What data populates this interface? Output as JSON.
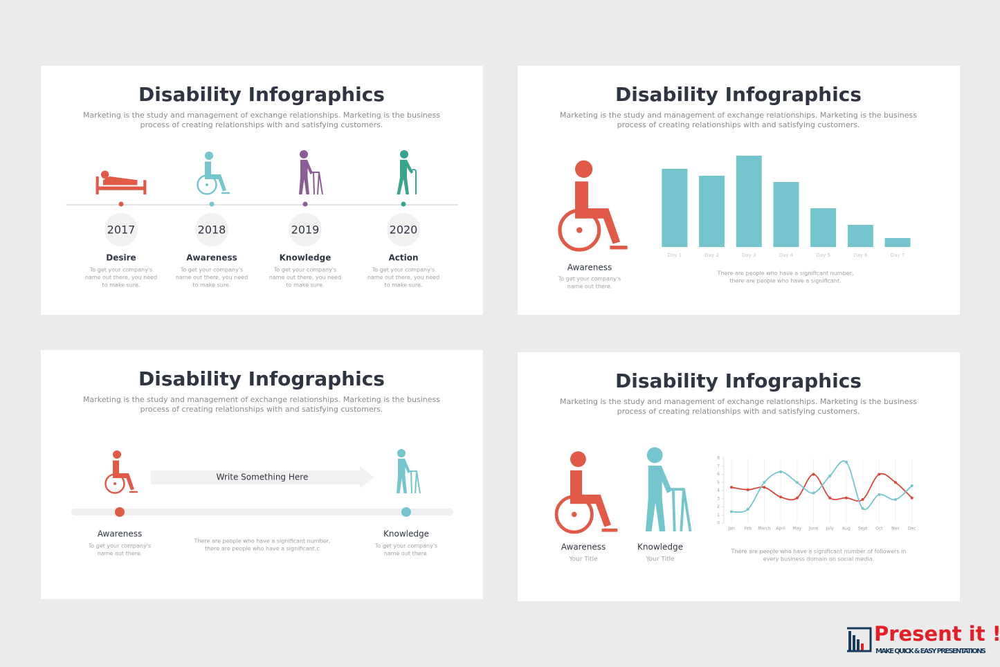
{
  "slides": [
    {
      "title": "Disability Infographics",
      "subtitle_lines": [
        "Marketing is the study and management of exchange relationships. Marketing is the business",
        "process of creating relationships with and satisfying customers."
      ],
      "timeline": [
        {
          "year": "2017",
          "label": "Desire",
          "text_lines": [
            "To get your company's",
            "name out there, you need",
            "to make sure."
          ]
        },
        {
          "year": "2018",
          "label": "Awareness",
          "text_lines": [
            "To get your company's",
            "name out there, you need",
            "to make sure."
          ]
        },
        {
          "year": "2019",
          "label": "Knowledge",
          "text_lines": [
            "To get your company's",
            "name out there, you need",
            "to make sure."
          ]
        },
        {
          "year": "2020",
          "label": "Action",
          "text_lines": [
            "To get your company's",
            "name out there, you need",
            "to make sure."
          ]
        }
      ]
    },
    {
      "title": "Disability Infographics",
      "subtitle_lines": [
        "Marketing is the study and management of exchange relationships. Marketing is the business",
        "process of creating relationships with and satisfying customers."
      ],
      "figure": {
        "label": "Awareness",
        "text_lines": [
          "To get your company's",
          "name out there."
        ]
      },
      "chart_data": {
        "type": "bar",
        "categories": [
          "Day 1",
          "Day 2",
          "Day 3",
          "Day 4",
          "Day 5",
          "Day 6",
          "Day 7"
        ],
        "values": [
          113,
          103,
          132,
          94,
          56,
          32,
          13
        ],
        "color": "#74c5ce",
        "ylim": [
          0,
          140
        ],
        "caption_lines": [
          "There are people who have a significant number,",
          "there are people who have a significant."
        ]
      }
    },
    {
      "title": "Disability Infographics",
      "subtitle_lines": [
        "Marketing is the study and management of exchange relationships. Marketing is the business",
        "process of creating relationships with and satisfying customers."
      ],
      "arrow_text": "Write Something Here",
      "start": {
        "label": "Awareness",
        "text_lines": [
          "To get your company's",
          "name out there."
        ]
      },
      "end": {
        "label": "Knowledge",
        "text_lines": [
          "To get your company's",
          "name out there."
        ]
      },
      "center_text_lines": [
        "There are people who have a significant number,",
        "there are people who have a significant.c"
      ]
    },
    {
      "title": "Disability Infographics",
      "subtitle_lines": [
        "Marketing is the study and management of exchange relationships. Marketing is the business",
        "process of creating relationships with and satisfying customers."
      ],
      "figures": [
        {
          "label": "Awareness",
          "sub": "Your Title"
        },
        {
          "label": "Knowledge",
          "sub": "Your Title"
        }
      ],
      "chart_data": {
        "type": "line",
        "categories": [
          "Jan",
          "Feb",
          "March",
          "April",
          "May",
          "June",
          "July",
          "Aug",
          "Sept",
          "Oct",
          "Nov",
          "Dec"
        ],
        "series": [
          {
            "color": "#d9473a",
            "values": [
              4.4,
              4.1,
              4.4,
              3.2,
              3.1,
              6.0,
              3.1,
              3.1,
              2.9,
              6.0,
              5.0,
              3.1
            ]
          },
          {
            "color": "#74c5ce",
            "values": [
              1.4,
              1.7,
              5.0,
              6.3,
              5.0,
              3.7,
              5.8,
              7.5,
              1.8,
              3.5,
              2.9,
              4.6
            ]
          }
        ],
        "ylim": [
          0,
          8
        ],
        "yticks": [
          0,
          1,
          2,
          3,
          4,
          5,
          6,
          7,
          8
        ],
        "caption_lines": [
          "There are people who have a significant number of followers in",
          "every business domain on social media."
        ]
      }
    }
  ],
  "brand": {
    "name": "Present it !",
    "tagline": "MAKE QUICK & EASY PRESENTATIONS"
  }
}
